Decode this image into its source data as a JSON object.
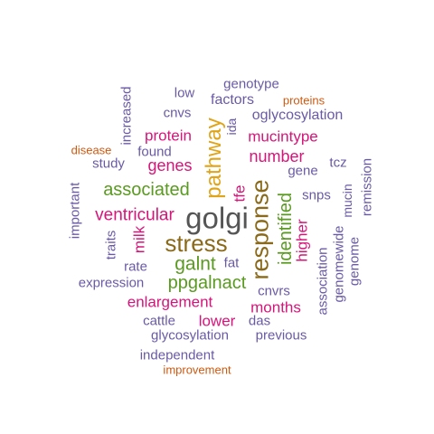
{
  "colors": {
    "purple": "#6a5aa6",
    "magenta": "#d6147a",
    "green": "#5a9a20",
    "gold": "#e0a418",
    "olive": "#8a6a1a",
    "gray": "#555555",
    "orange": "#cc5a12"
  },
  "words": [
    {
      "text": "golgi",
      "color": "gray"
    },
    {
      "text": "response",
      "color": "olive"
    },
    {
      "text": "stress",
      "color": "olive"
    },
    {
      "text": "pathway",
      "color": "gold"
    },
    {
      "text": "galnt",
      "color": "green"
    },
    {
      "text": "identified",
      "color": "green"
    },
    {
      "text": "ppgalnact",
      "color": "green"
    },
    {
      "text": "associated",
      "color": "green"
    },
    {
      "text": "ventricular",
      "color": "magenta"
    },
    {
      "text": "number",
      "color": "magenta"
    },
    {
      "text": "genes",
      "color": "magenta"
    },
    {
      "text": "mucintype",
      "color": "magenta"
    },
    {
      "text": "protein",
      "color": "magenta"
    },
    {
      "text": "enlargement",
      "color": "magenta"
    },
    {
      "text": "months",
      "color": "magenta"
    },
    {
      "text": "lower",
      "color": "magenta"
    },
    {
      "text": "milk",
      "color": "magenta"
    },
    {
      "text": "higher",
      "color": "magenta"
    },
    {
      "text": "tfe",
      "color": "magenta"
    },
    {
      "text": "oglycosylation",
      "color": "purple"
    },
    {
      "text": "factors",
      "color": "purple"
    },
    {
      "text": "genotype",
      "color": "purple"
    },
    {
      "text": "low",
      "color": "purple"
    },
    {
      "text": "cnvs",
      "color": "purple"
    },
    {
      "text": "increased",
      "color": "purple"
    },
    {
      "text": "ida",
      "color": "purple"
    },
    {
      "text": "found",
      "color": "purple"
    },
    {
      "text": "study",
      "color": "purple"
    },
    {
      "text": "gene",
      "color": "purple"
    },
    {
      "text": "tcz",
      "color": "purple"
    },
    {
      "text": "snps",
      "color": "purple"
    },
    {
      "text": "mucin",
      "color": "purple"
    },
    {
      "text": "remission",
      "color": "purple"
    },
    {
      "text": "important",
      "color": "purple"
    },
    {
      "text": "traits",
      "color": "purple"
    },
    {
      "text": "rate",
      "color": "purple"
    },
    {
      "text": "fat",
      "color": "purple"
    },
    {
      "text": "expression",
      "color": "purple"
    },
    {
      "text": "cnvrs",
      "color": "purple"
    },
    {
      "text": "association",
      "color": "purple"
    },
    {
      "text": "genomewide",
      "color": "purple"
    },
    {
      "text": "genome",
      "color": "purple"
    },
    {
      "text": "cattle",
      "color": "purple"
    },
    {
      "text": "das",
      "color": "purple"
    },
    {
      "text": "glycosylation",
      "color": "purple"
    },
    {
      "text": "previous",
      "color": "purple"
    },
    {
      "text": "independent",
      "color": "purple"
    },
    {
      "text": "proteins",
      "color": "orange"
    },
    {
      "text": "disease",
      "color": "orange"
    },
    {
      "text": "improvement",
      "color": "orange"
    }
  ]
}
